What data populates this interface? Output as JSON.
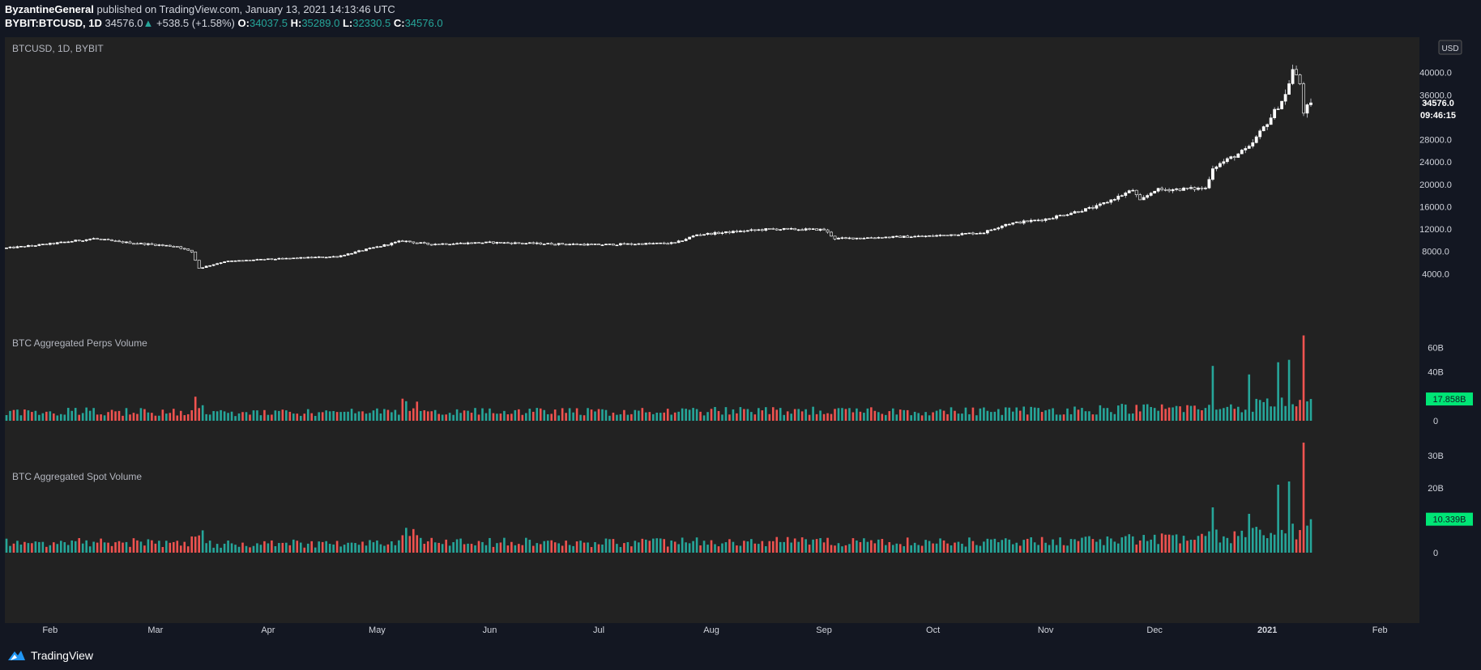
{
  "header": {
    "author": "ByzantineGeneral",
    "published": "published on TradingView.com, January 13, 2021 14:13:46 UTC"
  },
  "ohlc_line": {
    "symbol": "BYBIT:BTCUSD, 1D",
    "last": "34576.0",
    "change": "+538.5 (+1.58%)",
    "o_label": "O:",
    "o": "34037.5",
    "h_label": "H:",
    "h": "35289.0",
    "l_label": "L:",
    "l": "32330.5",
    "c_label": "C:",
    "c": "34576.0"
  },
  "footer": {
    "brand": "TradingView"
  },
  "colors": {
    "up": "#26a69a",
    "down": "#ef5350",
    "candle": "#ffffff",
    "pane": "#222222",
    "volume_badge": "#00e676"
  },
  "chart_data": [
    {
      "type": "candlestick",
      "title": "BTCUSD, 1D, BYBIT",
      "currency": "USD",
      "ylim": [
        0,
        44000
      ],
      "y_ticks": [
        "4000.0",
        "8000.0",
        "12000.0",
        "16000.0",
        "20000.0",
        "24000.0",
        "28000.0",
        "36000.0",
        "40000.0"
      ],
      "last_price": "34576.0",
      "countdown": "09:46:15",
      "grid": false,
      "x_ticks": [
        "Feb",
        "Mar",
        "Apr",
        "May",
        "Jun",
        "Jul",
        "Aug",
        "Sep",
        "Oct",
        "Nov",
        "Dec",
        "2021",
        "Feb"
      ],
      "keypoints": [
        [
          "2020-01-20",
          8600
        ],
        [
          "2020-02-01",
          9350
        ],
        [
          "2020-02-13",
          10300
        ],
        [
          "2020-02-20",
          9700
        ],
        [
          "2020-03-07",
          8900
        ],
        [
          "2020-03-11",
          7900
        ],
        [
          "2020-03-13",
          5000
        ],
        [
          "2020-03-20",
          6200
        ],
        [
          "2020-04-01",
          6600
        ],
        [
          "2020-04-20",
          7100
        ],
        [
          "2020-04-30",
          8650
        ],
        [
          "2020-05-08",
          9900
        ],
        [
          "2020-05-15",
          9300
        ],
        [
          "2020-06-01",
          9600
        ],
        [
          "2020-06-15",
          9400
        ],
        [
          "2020-07-01",
          9200
        ],
        [
          "2020-07-22",
          9500
        ],
        [
          "2020-07-28",
          11000
        ],
        [
          "2020-08-17",
          12000
        ],
        [
          "2020-09-01",
          11900
        ],
        [
          "2020-09-04",
          10300
        ],
        [
          "2020-09-30",
          10750
        ],
        [
          "2020-10-15",
          11400
        ],
        [
          "2020-10-21",
          12900
        ],
        [
          "2020-11-01",
          13800
        ],
        [
          "2020-11-15",
          16000
        ],
        [
          "2020-11-25",
          19000
        ],
        [
          "2020-11-27",
          17000
        ],
        [
          "2020-12-01",
          19000
        ],
        [
          "2020-12-15",
          19300
        ],
        [
          "2020-12-17",
          23000
        ],
        [
          "2020-12-27",
          26500
        ],
        [
          "2021-01-02",
          32000
        ],
        [
          "2021-01-06",
          36000
        ],
        [
          "2021-01-08",
          40500
        ],
        [
          "2021-01-10",
          38000
        ],
        [
          "2021-01-11",
          33000
        ],
        [
          "2021-01-13",
          34576
        ]
      ]
    },
    {
      "type": "bar",
      "title": "BTC Aggregated Perps Volume",
      "ylim": [
        0,
        75
      ],
      "unit": "B",
      "y_ticks": [
        "0",
        "40B",
        "60B"
      ],
      "last_value": "17.858B",
      "spikes": [
        [
          "2020-12-17",
          45
        ],
        [
          "2020-12-27",
          38
        ],
        [
          "2021-01-04",
          48
        ],
        [
          "2021-01-07",
          50
        ],
        [
          "2021-01-11",
          70
        ]
      ]
    },
    {
      "type": "bar",
      "title": "BTC Aggregated Spot Volume",
      "ylim": [
        0,
        34
      ],
      "unit": "B",
      "y_ticks": [
        "0",
        "20B",
        "30B"
      ],
      "last_value": "10.339B",
      "spikes": [
        [
          "2020-12-17",
          14
        ],
        [
          "2020-12-27",
          12
        ],
        [
          "2021-01-04",
          21
        ],
        [
          "2021-01-07",
          22
        ],
        [
          "2021-01-11",
          34
        ]
      ]
    }
  ]
}
